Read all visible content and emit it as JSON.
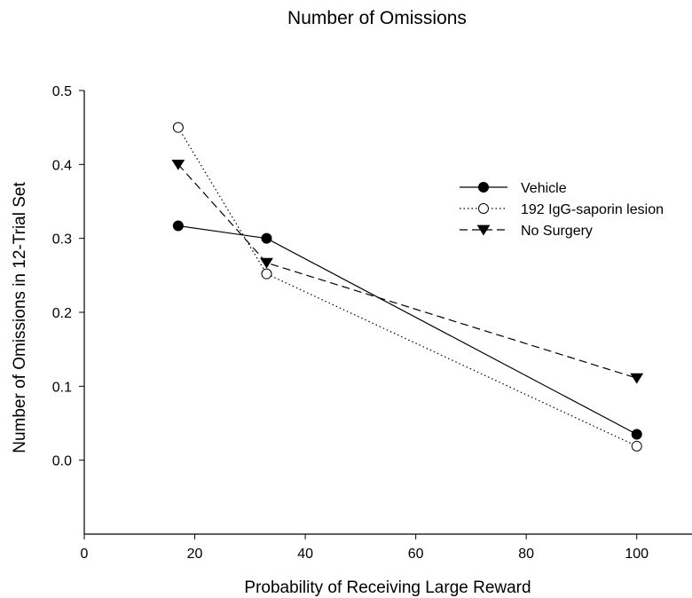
{
  "chart_data": {
    "type": "line",
    "title": "Number of Omissions",
    "xlabel": "Probability of Receiving Large Reward",
    "ylabel": "Number of Omissions in 12-Trial Set",
    "xlim": [
      0,
      110
    ],
    "ylim": [
      -0.1,
      0.5
    ],
    "xticks": [
      0,
      20,
      40,
      60,
      80,
      100
    ],
    "xtick_labels": [
      "0",
      "20",
      "40",
      "60",
      "80",
      "100"
    ],
    "yticks": [
      0.0,
      0.1,
      0.2,
      0.3,
      0.4,
      0.5
    ],
    "ytick_labels": [
      "0.0",
      "0.1",
      "0.2",
      "0.3",
      "0.4",
      "0.5"
    ],
    "grid": false,
    "legend_position": "right",
    "x": [
      17,
      33,
      100
    ],
    "series": [
      {
        "name": "Vehicle",
        "values": [
          0.317,
          0.3,
          0.035
        ],
        "marker": "filled-circle",
        "line_style": "solid",
        "color": "#000000"
      },
      {
        "name": "192 IgG-saporin lesion",
        "values": [
          0.45,
          0.252,
          0.019
        ],
        "marker": "open-circle",
        "line_style": "dotted",
        "color": "#000000"
      },
      {
        "name": "No Surgery",
        "values": [
          0.4,
          0.267,
          0.111
        ],
        "marker": "filled-triangle-down",
        "line_style": "dashed",
        "color": "#000000"
      }
    ]
  }
}
